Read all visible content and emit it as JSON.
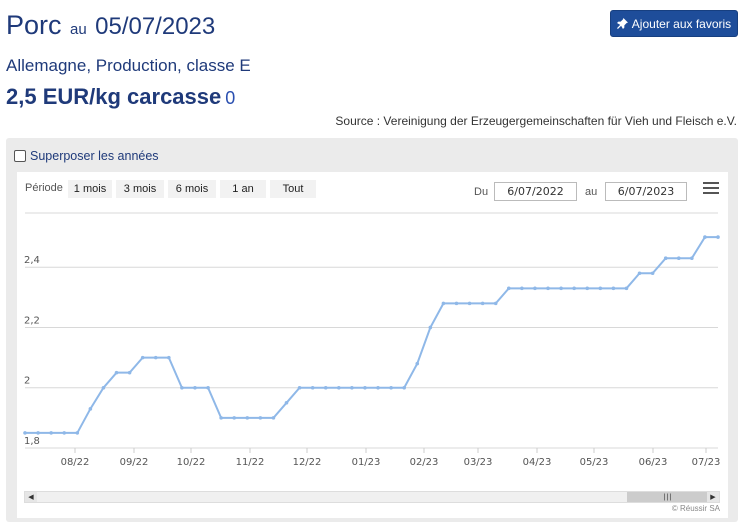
{
  "header": {
    "product": "Porc",
    "au": "au",
    "date": "05/07/2023",
    "favorite_button": "Ajouter aux favoris",
    "favorite_icon": "pin-icon",
    "subtitle": "Allemagne, Production, classe E",
    "price": "2,5 EUR/kg carcasse",
    "variation": "0",
    "source": "Source : Vereinigung der Erzeugergemeinschaften für Vieh und Fleisch e.V."
  },
  "controls": {
    "overlay_label": "Superposer les années",
    "overlay_checked": false,
    "period_label": "Période",
    "periods": [
      "1 mois",
      "3 mois",
      "6 mois",
      "1 an",
      "Tout"
    ],
    "du_label": "Du",
    "du_value": "6/07/2022",
    "au_label": "au",
    "au_value": "6/07/2023",
    "menu_icon": "hamburger-menu-icon"
  },
  "credits": "© Réussir SA",
  "chart_data": {
    "type": "line",
    "series_color": "#8fb8e8",
    "grid": true,
    "xlabel": "",
    "ylabel": "",
    "ylim": [
      1.8,
      2.55
    ],
    "y_ticks": [
      "1,8",
      "2",
      "2,2",
      "2,4"
    ],
    "x_ticks": [
      "08/22",
      "09/22",
      "10/22",
      "11/22",
      "12/22",
      "01/23",
      "02/23",
      "03/23",
      "04/23",
      "05/23",
      "06/23",
      "07/23"
    ],
    "series": [
      {
        "values": [
          1.85,
          1.85,
          1.85,
          1.85,
          1.85,
          1.93,
          2.0,
          2.05,
          2.05,
          2.1,
          2.1,
          2.1,
          2.0,
          2.0,
          2.0,
          1.9,
          1.9,
          1.9,
          1.9,
          1.9,
          1.95,
          2.0,
          2.0,
          2.0,
          2.0,
          2.0,
          2.0,
          2.0,
          2.0,
          2.0,
          2.08,
          2.2,
          2.28,
          2.28,
          2.28,
          2.28,
          2.28,
          2.33,
          2.33,
          2.33,
          2.33,
          2.33,
          2.33,
          2.33,
          2.33,
          2.33,
          2.33,
          2.38,
          2.38,
          2.43,
          2.43,
          2.43,
          2.5,
          2.5
        ]
      }
    ]
  }
}
